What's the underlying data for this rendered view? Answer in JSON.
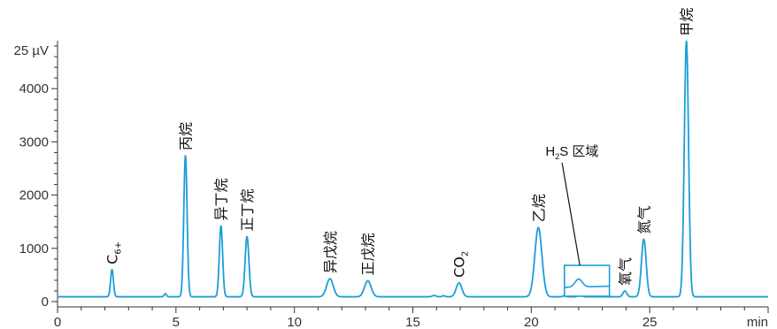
{
  "chart_data": {
    "type": "line",
    "title": "",
    "xlabel": "min",
    "ylabel": "",
    "y_unit": "25 µV",
    "xlim": [
      0,
      30
    ],
    "ylim": [
      0,
      4800
    ],
    "x_ticks": [
      0,
      5,
      10,
      15,
      20,
      25
    ],
    "x_tick_labels": [
      "0",
      "5",
      "10",
      "15",
      "20",
      "25"
    ],
    "y_ticks": [
      0,
      1000,
      2000,
      3000,
      4000
    ],
    "y_tick_labels": [
      "0",
      "1000",
      "2000",
      "3000",
      "4000"
    ],
    "grid": false,
    "baseline": 90,
    "line_color": "#1a9fd6",
    "peaks": [
      {
        "label": "C6+",
        "label_main": "C",
        "label_sub": "6+",
        "x": 2.3,
        "height": 510,
        "width": 0.06
      },
      {
        "label": "丙烷",
        "label_main": "丙烷",
        "label_sub": "",
        "x": 5.4,
        "height": 2650,
        "width": 0.07
      },
      {
        "label": "异丁烷",
        "label_main": "异丁烷",
        "label_sub": "",
        "x": 6.9,
        "height": 1330,
        "width": 0.07
      },
      {
        "label": "正丁烷",
        "label_main": "正丁烷",
        "label_sub": "",
        "x": 8.0,
        "height": 1130,
        "width": 0.08
      },
      {
        "label": "异戊烷",
        "label_main": "异戊烷",
        "label_sub": "",
        "x": 11.5,
        "height": 340,
        "width": 0.14
      },
      {
        "label": "正戊烷",
        "label_main": "正戊烷",
        "label_sub": "",
        "x": 13.1,
        "height": 300,
        "width": 0.14
      },
      {
        "label": "CO2",
        "label_main": "CO",
        "label_sub": "2",
        "x": 16.95,
        "height": 260,
        "width": 0.12
      },
      {
        "label": "乙烷",
        "label_main": "乙烷",
        "label_sub": "",
        "x": 20.3,
        "height": 1300,
        "width": 0.15
      },
      {
        "label": "氧气",
        "label_main": "氧气",
        "label_sub": "",
        "x": 23.95,
        "height": 110,
        "width": 0.08
      },
      {
        "label": "氮气",
        "label_main": "氮气",
        "label_sub": "",
        "x": 24.75,
        "height": 1080,
        "width": 0.1
      },
      {
        "label": "甲烷",
        "label_main": "甲烷",
        "label_sub": "",
        "x": 26.55,
        "height": 4800,
        "width": 0.09
      }
    ],
    "minor_bumps": [
      {
        "x": 4.55,
        "height": 60,
        "width": 0.05
      },
      {
        "x": 15.9,
        "height": 25,
        "width": 0.08
      },
      {
        "x": 16.3,
        "height": 20,
        "width": 0.06
      },
      {
        "x": 21.4,
        "height": 25,
        "width": 0.06
      },
      {
        "x": 22.05,
        "height": 45,
        "width": 0.08
      }
    ],
    "annotation": {
      "label": "H2S 区域",
      "label_main_left": "H",
      "label_sub": "2",
      "label_main_right": "S 区域",
      "box_x_range": [
        21.4,
        23.3
      ],
      "box_y_range": [
        100,
        680
      ],
      "inset_peak": {
        "x": 22.0,
        "height": 150,
        "width": 0.15
      }
    }
  }
}
